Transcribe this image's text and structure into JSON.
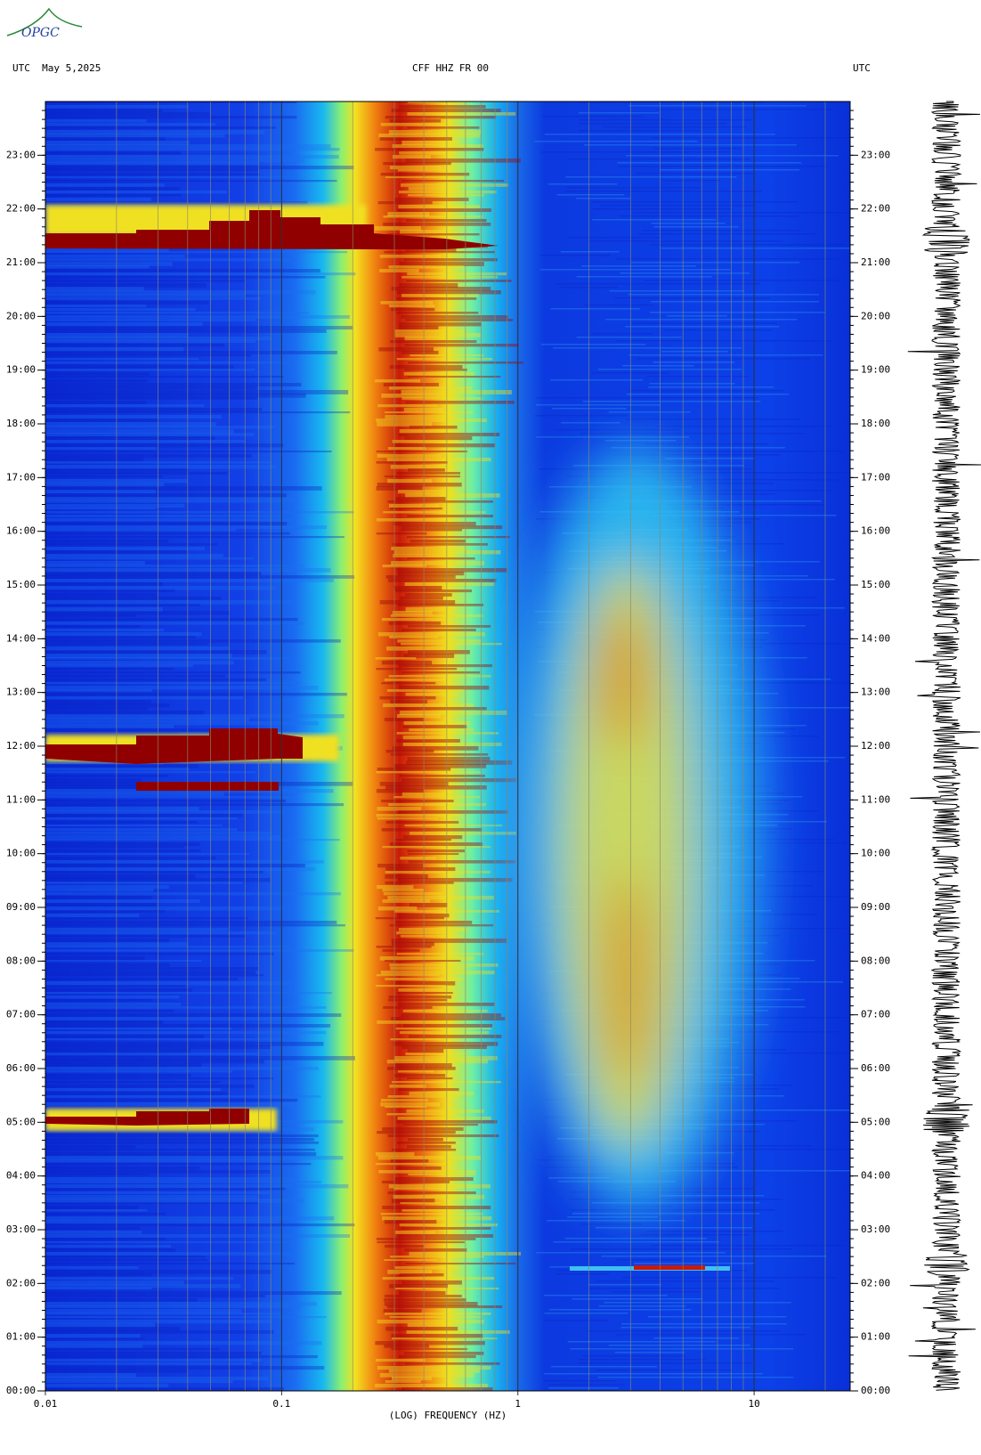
{
  "chart_data": {
    "type": "spectrogram",
    "logo": "OPGC",
    "header_left": "UTC  May 5,2025",
    "title": "CFF HHZ FR 00",
    "header_right": "UTC",
    "x_label": "(LOG) FREQUENCY (HZ)",
    "x_log": true,
    "x_minor_grid": true,
    "xlim": [
      0.01,
      25.5
    ],
    "xticks": [
      {
        "value": 0.01,
        "label": "0.01"
      },
      0.1,
      1,
      10
    ],
    "ylim": [
      0,
      24
    ],
    "yticks": [
      {
        "value": 0,
        "label": "00:00"
      },
      {
        "value": 1,
        "label": "01:00"
      },
      {
        "value": 2,
        "label": "02:00"
      },
      {
        "value": 3,
        "label": "03:00"
      },
      {
        "value": 4,
        "label": "04:00"
      },
      {
        "value": 5,
        "label": "05:00"
      },
      {
        "value": 6,
        "label": "06:00"
      },
      {
        "value": 7,
        "label": "07:00"
      },
      {
        "value": 8,
        "label": "08:00"
      },
      {
        "value": 9,
        "label": "09:00"
      },
      {
        "value": 10,
        "label": "10:00"
      },
      {
        "value": 11,
        "label": "11:00"
      },
      {
        "value": 12,
        "label": "12:00"
      },
      {
        "value": 13,
        "label": "13:00"
      },
      {
        "value": 14,
        "label": "14:00"
      },
      {
        "value": 15,
        "label": "15:00"
      },
      {
        "value": 16,
        "label": "16:00"
      },
      {
        "value": 17,
        "label": "17:00"
      },
      {
        "value": 18,
        "label": "18:00"
      },
      {
        "value": 19,
        "label": "19:00"
      },
      {
        "value": 20,
        "label": "20:00"
      },
      {
        "value": 21,
        "label": "21:00"
      },
      {
        "value": 22,
        "label": "22:00"
      },
      {
        "value": 23,
        "label": "23:00"
      }
    ]
  }
}
